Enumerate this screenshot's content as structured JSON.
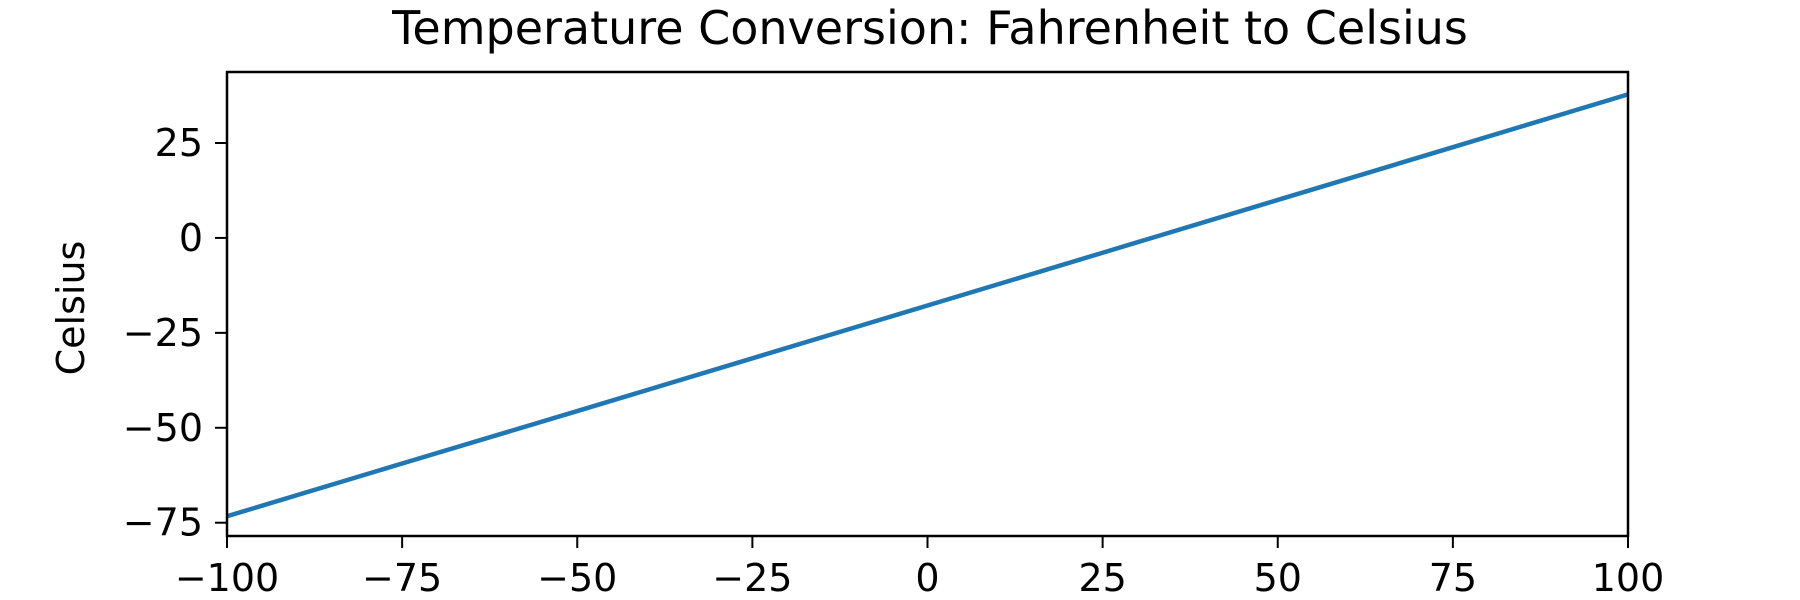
{
  "chart_data": {
    "type": "line",
    "title": "Temperature Conversion: Fahrenheit to Celsius",
    "xlabel": "",
    "ylabel": "Celsius",
    "xlim": [
      -100,
      100
    ],
    "ylim": [
      -78.5,
      43.7
    ],
    "x_ticks": [
      -100,
      -75,
      -50,
      -25,
      0,
      25,
      50,
      75,
      100
    ],
    "x_tick_labels": [
      "−100",
      "−75",
      "−50",
      "−25",
      "0",
      "25",
      "50",
      "75",
      "100"
    ],
    "y_ticks": [
      -75,
      -50,
      -25,
      0,
      25
    ],
    "y_tick_labels": [
      "−75",
      "−50",
      "−25",
      "0",
      "25"
    ],
    "grid": false,
    "series": [
      {
        "color": "#1f77b4",
        "x": [
          -100,
          -75,
          -50,
          -25,
          0,
          25,
          50,
          75,
          100
        ],
        "y": [
          -73.3,
          -59.4,
          -45.6,
          -31.7,
          -17.8,
          -3.9,
          10.0,
          23.9,
          37.8
        ]
      }
    ]
  }
}
